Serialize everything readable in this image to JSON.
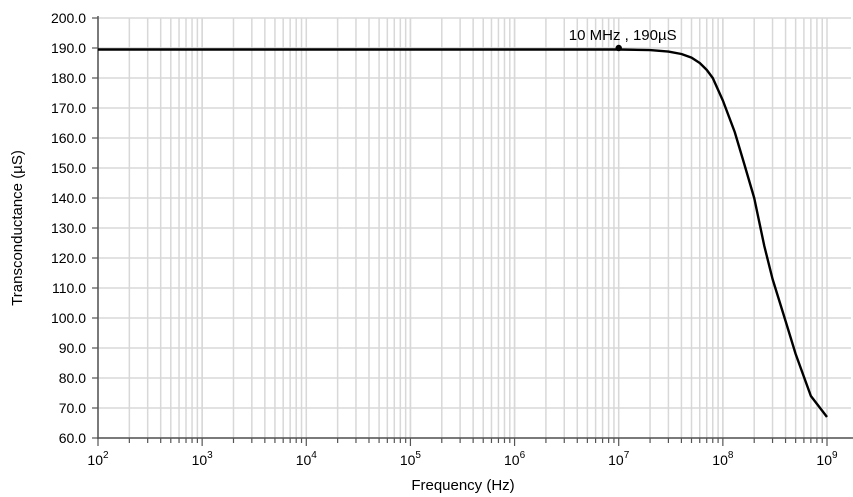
{
  "chart_data": {
    "type": "line",
    "title": "",
    "xlabel": "Frequency (Hz)",
    "ylabel": "Transconductance (µS)",
    "x_scale": "log",
    "xlim": [
      100,
      1000000000
    ],
    "ylim": [
      60,
      200
    ],
    "grid": true,
    "x_ticks": [
      {
        "value": 100,
        "base": "10",
        "exp": "2"
      },
      {
        "value": 1000,
        "base": "10",
        "exp": "3"
      },
      {
        "value": 10000,
        "base": "10",
        "exp": "4"
      },
      {
        "value": 100000,
        "base": "10",
        "exp": "5"
      },
      {
        "value": 1000000,
        "base": "10",
        "exp": "6"
      },
      {
        "value": 10000000,
        "base": "10",
        "exp": "7"
      },
      {
        "value": 100000000,
        "base": "10",
        "exp": "8"
      },
      {
        "value": 1000000000,
        "base": "10",
        "exp": "9"
      }
    ],
    "y_ticks": [
      {
        "value": 60,
        "label": "60.0"
      },
      {
        "value": 70,
        "label": "70.0"
      },
      {
        "value": 80,
        "label": "80.0"
      },
      {
        "value": 90,
        "label": "90.0"
      },
      {
        "value": 100,
        "label": "100.0"
      },
      {
        "value": 110,
        "label": "110.0"
      },
      {
        "value": 120,
        "label": "120.0"
      },
      {
        "value": 130,
        "label": "130.0"
      },
      {
        "value": 140,
        "label": "140.0"
      },
      {
        "value": 150,
        "label": "150.0"
      },
      {
        "value": 160,
        "label": "160.0"
      },
      {
        "value": 170,
        "label": "170.0"
      },
      {
        "value": 180,
        "label": "180.0"
      },
      {
        "value": 190,
        "label": "190.0"
      },
      {
        "value": 200,
        "label": "200.0"
      }
    ],
    "series": [
      {
        "x": [
          100,
          1000,
          10000,
          100000,
          1000000,
          10000000,
          20000000,
          30000000,
          40000000,
          50000000,
          60000000,
          70000000,
          80000000,
          100000000,
          130000000,
          160000000,
          200000000,
          250000000,
          300000000,
          400000000,
          500000000,
          700000000,
          1000000000
        ],
        "y": [
          189.5,
          189.5,
          189.5,
          189.5,
          189.5,
          189.5,
          189.3,
          188.8,
          188.0,
          186.8,
          185.0,
          182.7,
          180.0,
          172.5,
          162.0,
          151.5,
          140.0,
          124.0,
          113.0,
          99.0,
          88.0,
          74.0,
          67.0
        ]
      }
    ],
    "annotations": [
      {
        "text": "10 MHz , 190µS",
        "x": 10000000,
        "y": 190
      }
    ]
  }
}
